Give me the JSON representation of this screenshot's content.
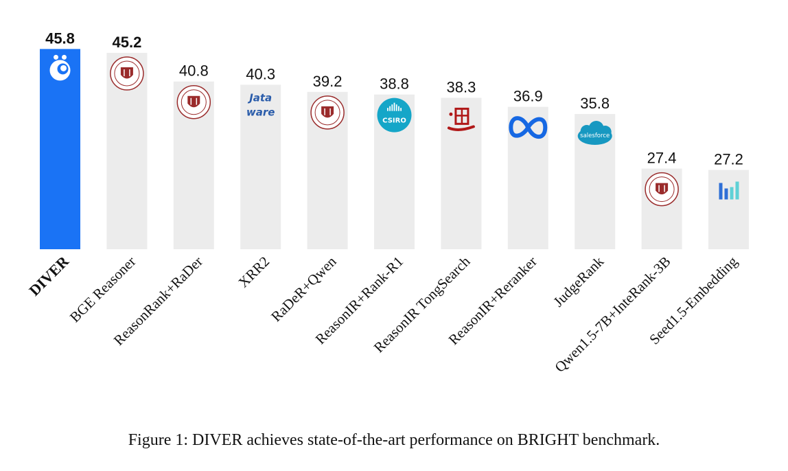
{
  "chart_data": {
    "type": "bar",
    "title": "",
    "xlabel": "",
    "ylabel": "",
    "ylim": [
      15,
      47
    ],
    "grid": false,
    "categories": [
      "DIVER",
      "BGE Reasoner",
      "ReasonRank+RaDer",
      "XRR2",
      "RaDeR+Qwen",
      "ReasonIR+Rank-R1",
      "ReasonIR TongSearch",
      "ReasonIR+Reranker",
      "JudgeRank",
      "Qwen1.5-7B+InteRank-3B",
      "Seed1.5-Embedding"
    ],
    "values": [
      45.8,
      45.2,
      40.8,
      40.3,
      39.2,
      38.8,
      38.3,
      36.9,
      35.8,
      27.4,
      27.2
    ],
    "value_labels": [
      "45.8",
      "45.2",
      "40.8",
      "40.3",
      "39.2",
      "38.8",
      "38.3",
      "36.9",
      "35.8",
      "27.4",
      "27.2"
    ],
    "highlight": "DIVER",
    "logos": [
      "diver-logo",
      "university-seal",
      "university-seal",
      "jataware-logo",
      "university-seal",
      "csiro-logo",
      "tongsearch-logo",
      "meta-logo",
      "salesforce-logo",
      "university-seal",
      "seed-logo"
    ]
  },
  "logo_text": {
    "jataware": [
      "Jata",
      "ware"
    ],
    "csiro": "CSIRO",
    "salesforce": "salesforce"
  },
  "caption": "Figure 1: DIVER achieves state-of-the-art performance on BRIGHT benchmark.",
  "colors": {
    "highlight": "#1a73f5",
    "bar": "#ececec",
    "seal": "#9a2b2b",
    "seal_blue": "#2a5caa",
    "csiro": "#15a6c8",
    "meta": "#1668e3",
    "salesforce": "#1798c1",
    "seed_dark": "#2f6fd6",
    "seed_light": "#5ed1d6",
    "tongsearch": "#b01818"
  }
}
